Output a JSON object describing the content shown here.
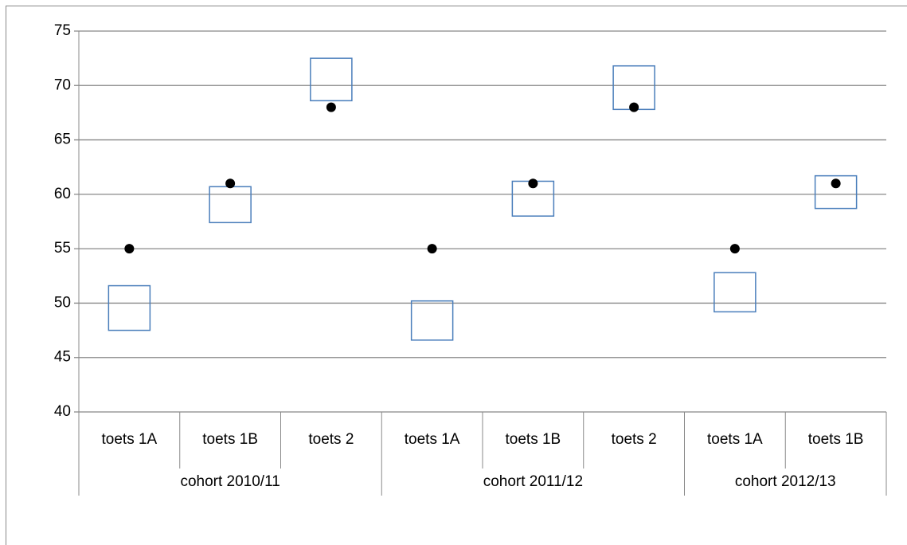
{
  "chart_data": {
    "type": "floating-box",
    "groups": [
      {
        "name": "cohort 2010/11",
        "categories": [
          "toets 1A",
          "toets 1B",
          "toets 2"
        ]
      },
      {
        "name": "cohort 2011/12",
        "categories": [
          "toets 1A",
          "toets 1B",
          "toets 2"
        ]
      },
      {
        "name": "cohort 2012/13",
        "categories": [
          "toets 1A",
          "toets 1B"
        ]
      }
    ],
    "low": [
      47.5,
      57.4,
      68.6,
      46.6,
      58.0,
      67.8,
      49.2,
      58.7
    ],
    "high": [
      51.6,
      60.7,
      72.5,
      50.2,
      61.2,
      71.8,
      52.8,
      61.7
    ],
    "points": [
      55,
      61,
      68,
      55,
      61,
      68,
      55,
      61
    ],
    "box_color": "#4a7ebb",
    "point_color": "#000000",
    "ylim": [
      40,
      75
    ],
    "yticks": [
      40,
      45,
      50,
      55,
      60,
      65,
      70,
      75
    ],
    "grid": true
  }
}
